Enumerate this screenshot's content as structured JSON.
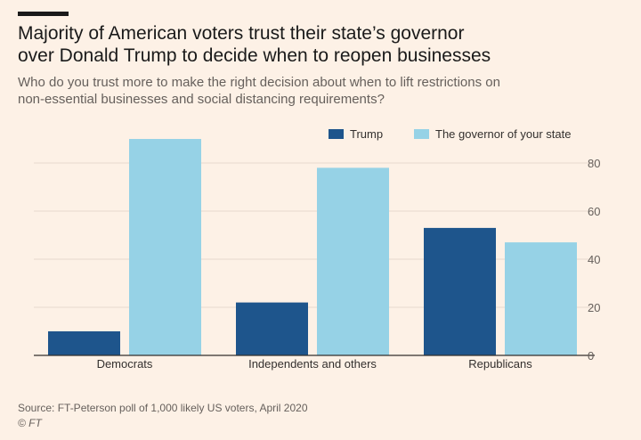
{
  "header": {
    "title_line1": "Majority of American voters trust their state’s governor",
    "title_line2": "over Donald Trump to decide when to reopen businesses",
    "subtitle_line1": "Who do you trust more to make the right decision about when to lift restrictions on",
    "subtitle_line2": "non-essential businesses and social distancing requirements?"
  },
  "colors": {
    "background": "#fdf1e6",
    "trump": "#1e558c",
    "governor": "#96d2e6",
    "gridline": "#e6d9ce",
    "axis": "#33302e"
  },
  "chart_data": {
    "type": "bar",
    "categories": [
      "Democrats",
      "Independents and others",
      "Republicans"
    ],
    "series": [
      {
        "name": "Trump",
        "values": [
          10,
          22,
          53
        ]
      },
      {
        "name": "The governor of your state",
        "values": [
          90,
          78,
          47
        ]
      }
    ],
    "yticks": [
      0,
      20,
      40,
      60,
      80
    ],
    "ylim": [
      0,
      90
    ],
    "y_axis_side": "right",
    "legend_position": "top-right",
    "title": "Majority of American voters trust their state’s governor over Donald Trump to decide when to reopen businesses",
    "xlabel": "",
    "ylabel": ""
  },
  "footer": {
    "source": "Source: FT-Peterson poll of 1,000 likely US voters, April 2020",
    "credit": "© FT"
  }
}
